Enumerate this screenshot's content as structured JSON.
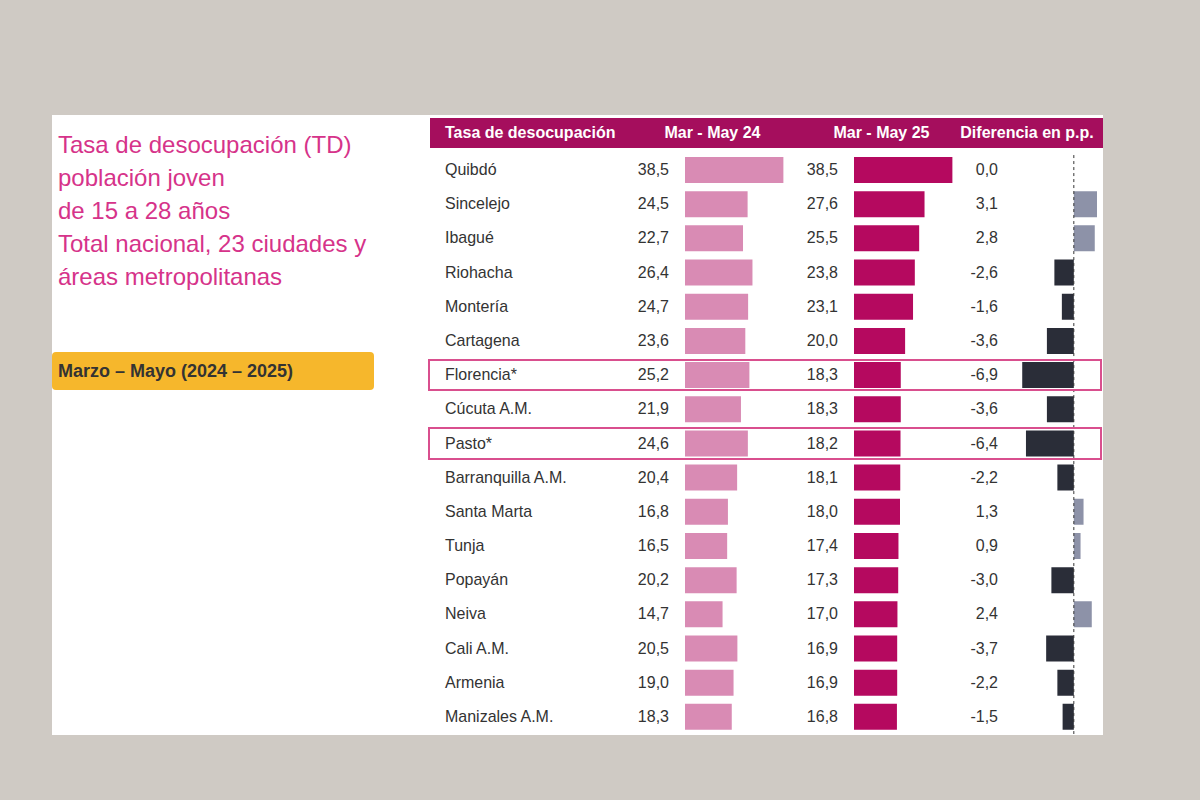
{
  "title": "Tasa de desocupación (TD)\npoblación joven\nde 15 a 28 años\nTotal nacional, 23 ciudades y\náreas metropolitanas",
  "subtitle": "Marzo – Mayo (2024 – 2025)",
  "chart_data": [
    {
      "type": "bar",
      "orientation": "horizontal",
      "title": "Mar - May 24",
      "ylabel": "Tasa de desocupación",
      "categories": [
        "Quibdó",
        "Sincelejo",
        "Ibagué",
        "Riohacha",
        "Montería",
        "Cartagena",
        "Florencia*",
        "Cúcuta A.M.",
        "Pasto*",
        "Barranquilla A.M.",
        "Santa Marta",
        "Tunja",
        "Popayán",
        "Neiva",
        "Cali A.M.",
        "Armenia",
        "Manizales A.M."
      ],
      "values": [
        38.5,
        24.5,
        22.7,
        26.4,
        24.7,
        23.6,
        25.2,
        21.9,
        24.6,
        20.4,
        16.8,
        16.5,
        20.2,
        14.7,
        20.5,
        19.0,
        18.3
      ],
      "value_labels": [
        "38,5",
        "24,5",
        "22,7",
        "26,4",
        "24,7",
        "23,6",
        "25,2",
        "21,9",
        "24,6",
        "20,4",
        "16,8",
        "16,5",
        "20,2",
        "14,7",
        "20,5",
        "19,0",
        "18,3"
      ],
      "color": "#d98bb4",
      "xlim": [
        0,
        45
      ],
      "data_labels": true,
      "tick_labels": "y"
    },
    {
      "type": "bar",
      "orientation": "horizontal",
      "title": "Mar - May 25",
      "categories": [
        "Quibdó",
        "Sincelejo",
        "Ibagué",
        "Riohacha",
        "Montería",
        "Cartagena",
        "Florencia*",
        "Cúcuta A.M.",
        "Pasto*",
        "Barranquilla A.M.",
        "Santa Marta",
        "Tunja",
        "Popayán",
        "Neiva",
        "Cali A.M.",
        "Armenia",
        "Manizales A.M."
      ],
      "values": [
        38.5,
        27.6,
        25.5,
        23.8,
        23.1,
        20.0,
        18.3,
        18.3,
        18.2,
        18.1,
        18.0,
        17.4,
        17.3,
        17.0,
        16.9,
        16.9,
        16.8
      ],
      "value_labels": [
        "38,5",
        "27,6",
        "25,5",
        "23,8",
        "23,1",
        "20,0",
        "18,3",
        "18,3",
        "18,2",
        "18,1",
        "18,0",
        "17,4",
        "17,3",
        "17,0",
        "16,9",
        "16,9",
        "16,8"
      ],
      "color": "#b5095f",
      "xlim": [
        0,
        45
      ],
      "data_labels": true,
      "tick_labels": false
    },
    {
      "type": "bar",
      "orientation": "horizontal",
      "title": "Diferencia en p.p.",
      "categories": [
        "Quibdó",
        "Sincelejo",
        "Ibagué",
        "Riohacha",
        "Montería",
        "Cartagena",
        "Florencia*",
        "Cúcuta A.M.",
        "Pasto*",
        "Barranquilla A.M.",
        "Santa Marta",
        "Tunja",
        "Popayán",
        "Neiva",
        "Cali A.M.",
        "Armenia",
        "Manizales A.M."
      ],
      "values": [
        0.0,
        3.1,
        2.8,
        -2.6,
        -1.6,
        -3.6,
        -6.9,
        -3.6,
        -6.4,
        -2.2,
        1.3,
        0.9,
        -3.0,
        2.4,
        -3.7,
        -2.2,
        -1.5
      ],
      "value_labels": [
        "0,0",
        "3,1",
        "2,8",
        "-2,6",
        "-1,6",
        "-3,6",
        "-6,9",
        "-3,6",
        "-6,4",
        "-2,2",
        "1,3",
        "0,9",
        "-3,0",
        "2,4",
        "-3,7",
        "-2,2",
        "-1,5"
      ],
      "colors": [
        "#2a2d38",
        "#8d92a8",
        "#8d92a8",
        "#2a2d38",
        "#2a2d38",
        "#2a2d38",
        "#2a2d38",
        "#2a2d38",
        "#2a2d38",
        "#2a2d38",
        "#8d92a8",
        "#8d92a8",
        "#2a2d38",
        "#8d92a8",
        "#2a2d38",
        "#2a2d38",
        "#2a2d38"
      ],
      "xlim": [
        -8,
        3.5
      ],
      "data_labels": true,
      "tick_labels": false
    }
  ]
}
